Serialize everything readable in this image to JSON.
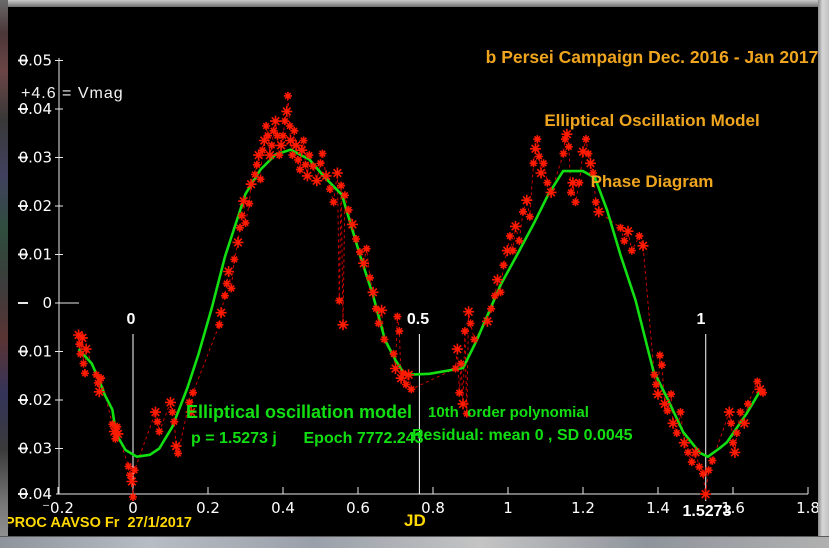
{
  "window": {
    "note_vmag": "+4.6 = Vmag",
    "credit": "PROC AAVSO Fr  27/1/2017"
  },
  "title": {
    "line1": "b Persei Campaign Dec. 2016 - Jan 2017",
    "line2": "Elliptical Oscillation Model",
    "line3": "Phase Diagram"
  },
  "annotations": {
    "model_line1": "Elliptical oscillation model",
    "model_line2": "p = 1.5273 j      Epoch 7772.243",
    "poly_line1": "10th  order polynomial",
    "poly_line2": "Residual: mean 0 , SD 0.0045"
  },
  "colors": {
    "background": "#000000",
    "title_gold": "#efa51e",
    "credit_yellow": "#ffd900",
    "model_green": "#12df12",
    "observation_red": "#ff1a00",
    "dashed_red": "#cf0000",
    "axis_white": "#e8e8e8"
  },
  "chart_data": {
    "type": "scatter",
    "title": "b Persei Campaign Dec. 2016 - Jan 2017 / Elliptical Oscillation Model / Phase Diagram",
    "xlabel": "JD",
    "ylabel": "+4.6 = Vmag",
    "y_convention": "delta magnitude from V=4.6; brighter (negative) plotted upward",
    "xlim": [
      -0.3,
      1.85
    ],
    "ylim_mag": [
      0.045,
      -0.055
    ],
    "grid": false,
    "x_ticks": {
      "values": [
        -0.2,
        0,
        0.2,
        0.4,
        0.6,
        0.8,
        1.0,
        1.2,
        1.4,
        1.6,
        1.8
      ],
      "labels": [
        "⁻0.2",
        "0",
        "0.2",
        "0.4",
        "0.6",
        "0.8",
        "1",
        "1.2",
        "1.4",
        "1.6",
        "1.8"
      ]
    },
    "y_ticks": {
      "values": [
        -0.05,
        -0.04,
        -0.03,
        -0.02,
        -0.01,
        0,
        0.01,
        0.02,
        0.03,
        0.04
      ],
      "labels": [
        "0.05",
        "0.04",
        "0.03",
        "0.02",
        "0.01",
        "0",
        "0.01",
        "0.02",
        "0.03",
        "0.04"
      ]
    },
    "phase_markers": [
      {
        "label": "0",
        "jd": 0
      },
      {
        "label": "0.5",
        "jd": 0.7637
      },
      {
        "label": "1",
        "jd": 1.5273
      }
    ],
    "period_label": "1.5273",
    "period_jd": 1.5273,
    "series": [
      {
        "name": "observations",
        "marker": "asterisk",
        "color": "#ff1a00",
        "points": [
          [
            -0.145,
            0.0066
          ],
          [
            -0.143,
            0.0085
          ],
          [
            -0.14,
            0.0105
          ],
          [
            -0.135,
            0.0072
          ],
          [
            -0.132,
            0.0125
          ],
          [
            -0.128,
            0.0145
          ],
          [
            -0.125,
            0.0095
          ],
          [
            -0.098,
            0.0148
          ],
          [
            -0.094,
            0.0165
          ],
          [
            -0.09,
            0.0183
          ],
          [
            -0.085,
            0.0155
          ],
          [
            -0.055,
            0.025
          ],
          [
            -0.05,
            0.0265
          ],
          [
            -0.047,
            0.028
          ],
          [
            -0.042,
            0.0255
          ],
          [
            -0.04,
            0.027
          ],
          [
            -0.012,
            0.0337
          ],
          [
            -0.008,
            0.0355
          ],
          [
            -0.003,
            0.0368
          ],
          [
            0.0,
            0.04
          ],
          [
            0.004,
            0.0345
          ],
          [
            0.06,
            0.0225
          ],
          [
            0.065,
            0.0245
          ],
          [
            0.07,
            0.0265
          ],
          [
            0.1,
            0.0205
          ],
          [
            0.105,
            0.0225
          ],
          [
            0.11,
            0.0245
          ],
          [
            0.115,
            0.0295
          ],
          [
            0.12,
            0.031
          ],
          [
            0.15,
            0.0205
          ],
          [
            0.155,
            0.0225
          ],
          [
            0.16,
            0.0185
          ],
          [
            0.23,
            0.0045
          ],
          [
            0.235,
            0.002
          ],
          [
            0.245,
            -0.0015
          ],
          [
            0.25,
            -0.004
          ],
          [
            0.255,
            -0.0065
          ],
          [
            0.262,
            -0.003
          ],
          [
            0.27,
            -0.009
          ],
          [
            0.28,
            -0.0125
          ],
          [
            0.285,
            -0.0155
          ],
          [
            0.29,
            -0.018
          ],
          [
            0.295,
            -0.021
          ],
          [
            0.3,
            -0.0165
          ],
          [
            0.31,
            -0.0205
          ],
          [
            0.315,
            -0.0245
          ],
          [
            0.325,
            -0.0265
          ],
          [
            0.33,
            -0.0285
          ],
          [
            0.335,
            -0.0305
          ],
          [
            0.34,
            -0.0255
          ],
          [
            0.345,
            -0.0315
          ],
          [
            0.35,
            -0.0335
          ],
          [
            0.355,
            -0.0365
          ],
          [
            0.36,
            -0.0345
          ],
          [
            0.365,
            -0.0305
          ],
          [
            0.37,
            -0.0325
          ],
          [
            0.375,
            -0.0355
          ],
          [
            0.38,
            -0.0375
          ],
          [
            0.385,
            -0.0345
          ],
          [
            0.39,
            -0.0305
          ],
          [
            0.395,
            -0.0325
          ],
          [
            0.4,
            -0.0345
          ],
          [
            0.405,
            -0.0375
          ],
          [
            0.41,
            -0.0395
          ],
          [
            0.413,
            -0.0427
          ],
          [
            0.418,
            -0.0365
          ],
          [
            0.42,
            -0.0335
          ],
          [
            0.425,
            -0.0305
          ],
          [
            0.43,
            -0.0355
          ],
          [
            0.435,
            -0.0325
          ],
          [
            0.44,
            -0.0295
          ],
          [
            0.445,
            -0.0275
          ],
          [
            0.45,
            -0.0315
          ],
          [
            0.455,
            -0.0335
          ],
          [
            0.46,
            -0.0285
          ],
          [
            0.465,
            -0.0262
          ],
          [
            0.47,
            -0.0305
          ],
          [
            0.48,
            -0.0282
          ],
          [
            0.49,
            -0.0252
          ],
          [
            0.5,
            -0.0288
          ],
          [
            0.505,
            -0.0308
          ],
          [
            0.515,
            -0.0262
          ],
          [
            0.525,
            -0.0235
          ],
          [
            0.535,
            -0.0208
          ],
          [
            0.545,
            -0.0268
          ],
          [
            0.55,
            -0.0005
          ],
          [
            0.555,
            -0.0242
          ],
          [
            0.56,
            0.0045
          ],
          [
            0.565,
            -0.0222
          ],
          [
            0.575,
            -0.0192
          ],
          [
            0.585,
            -0.0162
          ],
          [
            0.595,
            -0.0132
          ],
          [
            0.605,
            -0.0105
          ],
          [
            0.615,
            -0.0082
          ],
          [
            0.623,
            -0.0112
          ],
          [
            0.632,
            -0.0052
          ],
          [
            0.64,
            -0.0022
          ],
          [
            0.648,
            0.0012
          ],
          [
            0.655,
            0.0042
          ],
          [
            0.663,
            0.0015
          ],
          [
            0.67,
            0.0075
          ],
          [
            0.695,
            0.0105
          ],
          [
            0.7,
            0.0135
          ],
          [
            0.705,
            0.0028
          ],
          [
            0.71,
            0.0058
          ],
          [
            0.715,
            0.0155
          ],
          [
            0.72,
            0.0145
          ],
          [
            0.728,
            0.0168
          ],
          [
            0.735,
            0.0148
          ],
          [
            0.742,
            0.0178
          ],
          [
            0.86,
            0.0135
          ],
          [
            0.865,
            0.0095
          ],
          [
            0.87,
            0.0185
          ],
          [
            0.875,
            0.0125
          ],
          [
            0.88,
            0.0208
          ],
          [
            0.885,
            0.0058
          ],
          [
            0.89,
            0.0228
          ],
          [
            0.895,
            0.0018
          ],
          [
            0.9,
            0.0042
          ],
          [
            0.91,
            0.0075
          ],
          [
            0.945,
            0.0038
          ],
          [
            0.955,
            0.0012
          ],
          [
            0.965,
            -0.0015
          ],
          [
            0.972,
            -0.0048
          ],
          [
            0.98,
            -0.0022
          ],
          [
            0.988,
            -0.0078
          ],
          [
            0.998,
            -0.0108
          ],
          [
            1.005,
            -0.0138
          ],
          [
            1.013,
            -0.0108
          ],
          [
            1.02,
            -0.0158
          ],
          [
            1.03,
            -0.0128
          ],
          [
            1.04,
            -0.0188
          ],
          [
            1.05,
            -0.0212
          ],
          [
            1.058,
            -0.0178
          ],
          [
            1.068,
            -0.0288
          ],
          [
            1.073,
            -0.0318
          ],
          [
            1.078,
            -0.0338
          ],
          [
            1.083,
            -0.0302
          ],
          [
            1.088,
            -0.0268
          ],
          [
            1.095,
            -0.0288
          ],
          [
            1.105,
            -0.0248
          ],
          [
            1.115,
            -0.0228
          ],
          [
            1.148,
            -0.0308
          ],
          [
            1.152,
            -0.0338
          ],
          [
            1.157,
            -0.0348
          ],
          [
            1.162,
            -0.0322
          ],
          [
            1.168,
            -0.0228
          ],
          [
            1.173,
            -0.0248
          ],
          [
            1.18,
            -0.0208
          ],
          [
            1.19,
            -0.0248
          ],
          [
            1.2,
            -0.0312
          ],
          [
            1.208,
            -0.0338
          ],
          [
            1.214,
            -0.0308
          ],
          [
            1.22,
            -0.0288
          ],
          [
            1.227,
            -0.0268
          ],
          [
            1.234,
            -0.0208
          ],
          [
            1.242,
            -0.0188
          ],
          [
            1.3,
            -0.0155
          ],
          [
            1.31,
            -0.0128
          ],
          [
            1.32,
            -0.0148
          ],
          [
            1.33,
            -0.0108
          ],
          [
            1.35,
            -0.0138
          ],
          [
            1.36,
            -0.0118
          ],
          [
            1.39,
            0.0148
          ],
          [
            1.395,
            0.0168
          ],
          [
            1.4,
            0.0188
          ],
          [
            1.405,
            0.0108
          ],
          [
            1.41,
            0.0128
          ],
          [
            1.418,
            0.0208
          ],
          [
            1.425,
            0.0222
          ],
          [
            1.435,
            0.0188
          ],
          [
            1.44,
            0.0248
          ],
          [
            1.45,
            0.0268
          ],
          [
            1.46,
            0.0225
          ],
          [
            1.47,
            0.0288
          ],
          [
            1.48,
            0.0308
          ],
          [
            1.49,
            0.0328
          ],
          [
            1.5,
            0.0308
          ],
          [
            1.51,
            0.0338
          ],
          [
            1.52,
            0.0352
          ],
          [
            1.527,
            0.0394
          ],
          [
            1.535,
            0.0345
          ],
          [
            1.545,
            0.0325
          ],
          [
            1.59,
            0.0225
          ],
          [
            1.595,
            0.0248
          ],
          [
            1.6,
            0.0288
          ],
          [
            1.605,
            0.0308
          ],
          [
            1.61,
            0.0268
          ],
          [
            1.62,
            0.0225
          ],
          [
            1.63,
            0.0248
          ],
          [
            1.64,
            0.0208
          ],
          [
            1.665,
            0.0162
          ],
          [
            1.672,
            0.0178
          ],
          [
            1.68,
            0.0185
          ]
        ]
      },
      {
        "name": "model-10th-order-polynomial",
        "marker": "line",
        "color": "#12df12",
        "points": [
          [
            -0.145,
            0.0095
          ],
          [
            -0.11,
            0.0125
          ],
          [
            -0.09,
            0.016
          ],
          [
            -0.075,
            0.019
          ],
          [
            -0.055,
            0.022
          ],
          [
            -0.045,
            0.027
          ],
          [
            -0.02,
            0.0303
          ],
          [
            0.01,
            0.0317
          ],
          [
            0.045,
            0.0313
          ],
          [
            0.07,
            0.03
          ],
          [
            0.105,
            0.0255
          ],
          [
            0.145,
            0.0175
          ],
          [
            0.175,
            0.0105
          ],
          [
            0.21,
            0.001
          ],
          [
            0.245,
            -0.0095
          ],
          [
            0.3,
            -0.0225
          ],
          [
            0.34,
            -0.0275
          ],
          [
            0.38,
            -0.0306
          ],
          [
            0.42,
            -0.0316
          ],
          [
            0.47,
            -0.0296
          ],
          [
            0.51,
            -0.026
          ],
          [
            0.557,
            -0.0223
          ],
          [
            0.605,
            -0.0099
          ],
          [
            0.64,
            -0.0016
          ],
          [
            0.672,
            0.0076
          ],
          [
            0.7,
            0.0118
          ],
          [
            0.725,
            0.0148
          ],
          [
            0.79,
            0.0146
          ],
          [
            0.88,
            0.0134
          ],
          [
            0.917,
            0.0076
          ],
          [
            0.98,
            -0.0037
          ],
          [
            1.024,
            -0.0099
          ],
          [
            1.067,
            -0.0161
          ],
          [
            1.107,
            -0.0223
          ],
          [
            1.147,
            -0.0272
          ],
          [
            1.2,
            -0.0272
          ],
          [
            1.232,
            -0.0258
          ],
          [
            1.264,
            -0.0192
          ],
          [
            1.3,
            -0.0099
          ],
          [
            1.34,
            -0.0006
          ],
          [
            1.387,
            0.0138
          ],
          [
            1.427,
            0.02
          ],
          [
            1.467,
            0.0266
          ],
          [
            1.512,
            0.0309
          ],
          [
            1.533,
            0.0317
          ],
          [
            1.565,
            0.0299
          ],
          [
            1.584,
            0.0287
          ],
          [
            1.637,
            0.0227
          ],
          [
            1.677,
            0.0175
          ]
        ]
      }
    ]
  }
}
